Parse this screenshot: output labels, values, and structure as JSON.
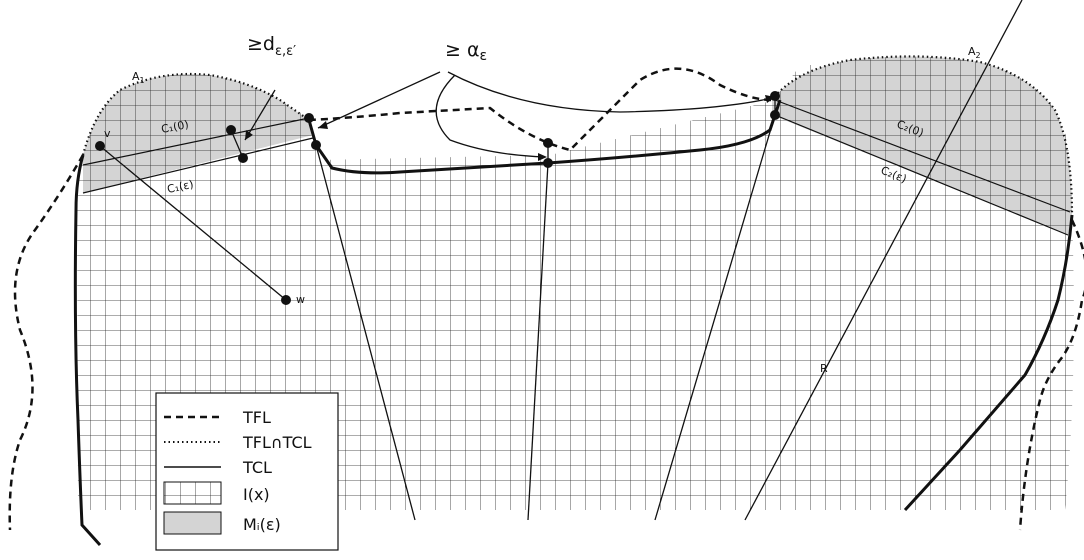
{
  "annotations": {
    "distance_label": "≥d",
    "distance_sub": "ε,ε′",
    "alpha_label": "≥ α",
    "alpha_sub": "ε"
  },
  "regions": {
    "a1": "A",
    "a1_sub": "1",
    "a2": "A",
    "a2_sub": "2",
    "c1_0": "C₁(0)",
    "c1_eps": "C₁(ε)",
    "c2_0": "C₂(0)",
    "c2_eps": "C₂(ε)"
  },
  "points": {
    "v": "v",
    "w": "w",
    "r": "R"
  },
  "legend": {
    "items": [
      {
        "style": "dashed",
        "label": "TFL"
      },
      {
        "style": "dotted",
        "label": "TFL∩TCL"
      },
      {
        "style": "solid",
        "label": "TCL"
      },
      {
        "style": "grid",
        "label": "I(x)"
      },
      {
        "style": "shaded",
        "label": "Mᵢ(ε)"
      }
    ]
  }
}
